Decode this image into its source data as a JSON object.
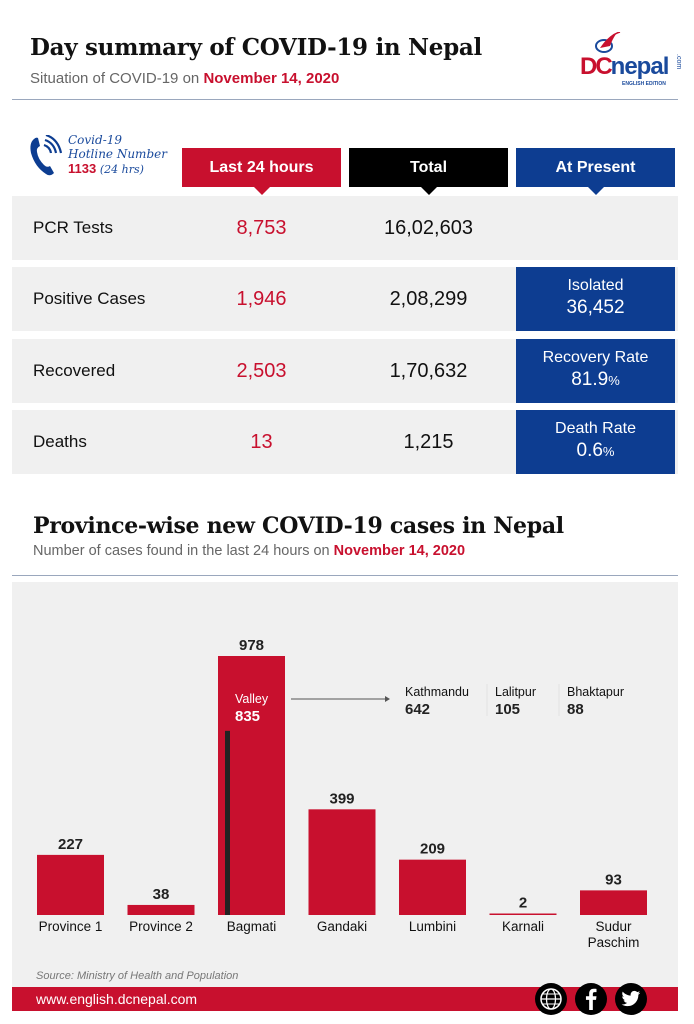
{
  "header": {
    "title": "Day summary of COVID-19 in Nepal",
    "subtitle_prefix": "Situation of COVID-19 on ",
    "subtitle_date": "November 14, 2020",
    "logo": {
      "dc": "DC",
      "nepal": "nepal",
      "edition": "ENGLISH EDITION",
      "com": ".com"
    }
  },
  "hotline": {
    "line1": "Covid-19",
    "line2": "Hotline Number",
    "number": "1133",
    "hours": "(24 hrs)",
    "icon": "phone-icon"
  },
  "columns": {
    "last24": "Last 24 hours",
    "total": "Total",
    "present": "At Present"
  },
  "rows": [
    {
      "label": "PCR Tests",
      "last24": "8,753",
      "total": "16,02,603",
      "present_label": "",
      "present_value": "",
      "present_unit": ""
    },
    {
      "label": "Positive Cases",
      "last24": "1,946",
      "total": "2,08,299",
      "present_label": "Isolated",
      "present_value": "36,452",
      "present_unit": ""
    },
    {
      "label": "Recovered",
      "last24": "2,503",
      "total": "1,70,632",
      "present_label": "Recovery Rate",
      "present_value": "81.9",
      "present_unit": "%"
    },
    {
      "label": "Deaths",
      "last24": "13",
      "total": "1,215",
      "present_label": "Death Rate",
      "present_value": "0.6",
      "present_unit": "%"
    }
  ],
  "section2": {
    "title": "Province-wise new COVID-19 cases in Nepal",
    "subtitle_prefix": "Number of cases found in the last 24 hours on ",
    "subtitle_date": "November 14, 2020"
  },
  "chart_data": {
    "type": "bar",
    "title": "Province-wise new COVID-19 cases in Nepal",
    "subtitle": "Number of cases found in the last 24 hours on November 14, 2020",
    "xlabel": "",
    "ylabel": "",
    "ylim": [
      0,
      978
    ],
    "grid": false,
    "categories": [
      "Province 1",
      "Province 2",
      "Bagmati",
      "Gandaki",
      "Lumbini",
      "Karnali",
      "Sudur Paschim"
    ],
    "values": [
      227,
      38,
      978,
      399,
      209,
      2,
      93
    ],
    "bar_color": "#c8102e",
    "annotations": {
      "valley": {
        "label": "Valley",
        "value": 835,
        "parent": "Bagmati"
      },
      "districts": [
        {
          "name": "Kathmandu",
          "value": 642
        },
        {
          "name": "Lalitpur",
          "value": 105
        },
        {
          "name": "Bhaktapur",
          "value": 88
        }
      ]
    }
  },
  "footer": {
    "source": "Source: Ministry of Health and Population",
    "url": "www.english.dcnepal.com",
    "icons": [
      "globe-icon",
      "facebook-icon",
      "twitter-icon"
    ]
  },
  "colors": {
    "red": "#c8102e",
    "blue": "#0d3d91",
    "black": "#000000",
    "panel": "#f0f0f0"
  }
}
